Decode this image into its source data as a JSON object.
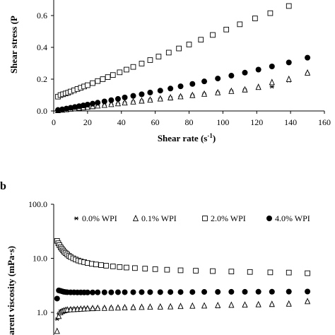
{
  "panels": {
    "b_label": "b"
  },
  "chart_data": [
    {
      "panel": "a",
      "type": "scatter",
      "xlabel": "Shear rate (s",
      "xlabel_sup": "-1",
      "xlabel_tail": ")",
      "ylabel": "Shear stress (P",
      "xlim": [
        0,
        160
      ],
      "ylim": [
        0,
        0.8
      ],
      "x_ticks": [
        "0",
        "20",
        "40",
        "60",
        "80",
        "100",
        "120",
        "140",
        "160"
      ],
      "y_ticks": [
        "0.0",
        "0.2",
        "0.4",
        "0.6",
        "0.8"
      ],
      "series": [
        {
          "marker": "star",
          "x": [
            2.5,
            5,
            7.5,
            10,
            12.5,
            15,
            17.5,
            20,
            23,
            26,
            30,
            34,
            38,
            42,
            47,
            52,
            57,
            63,
            69,
            75,
            82,
            89,
            97,
            105,
            113,
            121,
            129,
            139,
            150
          ],
          "y": [
            0.003,
            0.006,
            0.009,
            0.012,
            0.015,
            0.018,
            0.021,
            0.024,
            0.028,
            0.032,
            0.036,
            0.041,
            0.046,
            0.051,
            0.057,
            0.063,
            0.069,
            0.076,
            0.083,
            0.09,
            0.098,
            0.106,
            0.115,
            0.124,
            0.133,
            0.143,
            0.152,
            0.19,
            0.235
          ]
        },
        {
          "marker": "triangle",
          "x": [
            2.5,
            5,
            7.5,
            10,
            12.5,
            15,
            17.5,
            20,
            23,
            26,
            30,
            34,
            38,
            42,
            47,
            52,
            57,
            63,
            69,
            75,
            82,
            89,
            97,
            105,
            113,
            121,
            129,
            139,
            150
          ],
          "y": [
            0.004,
            0.007,
            0.01,
            0.013,
            0.016,
            0.019,
            0.022,
            0.025,
            0.029,
            0.033,
            0.037,
            0.042,
            0.047,
            0.052,
            0.058,
            0.064,
            0.07,
            0.077,
            0.084,
            0.091,
            0.099,
            0.107,
            0.116,
            0.125,
            0.134,
            0.15,
            0.18,
            0.2,
            0.24
          ]
        },
        {
          "marker": "square",
          "x": [
            2.5,
            4,
            5.5,
            7,
            8.5,
            10,
            12,
            14,
            16,
            18,
            20,
            23,
            26,
            29,
            32,
            35,
            39,
            43,
            47,
            52,
            57,
            62,
            68,
            74,
            80,
            87,
            94,
            102,
            110,
            119,
            128,
            139
          ],
          "y": [
            0.09,
            0.1,
            0.105,
            0.11,
            0.115,
            0.122,
            0.13,
            0.138,
            0.146,
            0.154,
            0.162,
            0.175,
            0.188,
            0.2,
            0.213,
            0.226,
            0.243,
            0.26,
            0.277,
            0.298,
            0.32,
            0.342,
            0.367,
            0.393,
            0.418,
            0.448,
            0.478,
            0.512,
            0.545,
            0.582,
            0.615,
            0.66
          ]
        },
        {
          "marker": "circle",
          "x": [
            2.5,
            5,
            7.5,
            10,
            12.5,
            15,
            17.5,
            20,
            23,
            26,
            30,
            34,
            38,
            42,
            47,
            52,
            57,
            63,
            69,
            75,
            82,
            89,
            97,
            105,
            113,
            121,
            129,
            139,
            150
          ],
          "y": [
            0.006,
            0.01,
            0.015,
            0.02,
            0.025,
            0.03,
            0.035,
            0.04,
            0.046,
            0.052,
            0.06,
            0.068,
            0.076,
            0.085,
            0.095,
            0.105,
            0.116,
            0.128,
            0.141,
            0.155,
            0.17,
            0.186,
            0.204,
            0.222,
            0.241,
            0.26,
            0.28,
            0.305,
            0.335
          ]
        }
      ]
    },
    {
      "panel": "b",
      "type": "scatter",
      "y_scale": "log",
      "ylabel": "arent viscosity (mPa·s)",
      "ylim": [
        0.3,
        100
      ],
      "y_ticks": [
        {
          "value": 100,
          "label": "100.0"
        },
        {
          "value": 10,
          "label": "10.0"
        },
        {
          "value": 1,
          "label": "1.0"
        }
      ],
      "xlim": [
        0,
        160
      ],
      "legend": {
        "position": "top",
        "entries": [
          {
            "marker": "star",
            "label": "0.0% WPI"
          },
          {
            "marker": "triangle",
            "label": "0.1% WPI"
          },
          {
            "marker": "square",
            "label": "2.0% WPI"
          },
          {
            "marker": "circle",
            "label": "4.0% WPI"
          }
        ]
      },
      "series": [
        {
          "name": "0.0% WPI",
          "marker": "star",
          "x": [
            2,
            3,
            4,
            5,
            6,
            7,
            8,
            10,
            12,
            14,
            16,
            18,
            20,
            23,
            26,
            30,
            34,
            38,
            42,
            47,
            52,
            57,
            63,
            69,
            75,
            82,
            89,
            97,
            105,
            113,
            121,
            129,
            139,
            150
          ],
          "y": [
            0.75,
            0.95,
            1.05,
            1.08,
            1.1,
            1.12,
            1.13,
            1.14,
            1.15,
            1.15,
            1.15,
            1.16,
            1.17,
            1.18,
            1.18,
            1.19,
            1.2,
            1.2,
            1.21,
            1.21,
            1.22,
            1.22,
            1.23,
            1.24,
            1.25,
            1.26,
            1.27,
            1.28,
            1.3,
            1.32,
            1.34,
            1.36,
            1.38,
            1.55
          ]
        },
        {
          "name": "0.1% WPI",
          "marker": "triangle",
          "x": [
            2,
            3,
            4,
            5,
            6,
            7,
            8,
            10,
            12,
            14,
            16,
            18,
            20,
            23,
            26,
            30,
            34,
            38,
            42,
            47,
            52,
            57,
            63,
            69,
            75,
            82,
            89,
            97,
            105,
            113,
            121,
            129,
            139,
            150
          ],
          "y": [
            0.45,
            0.85,
            1.0,
            1.05,
            1.08,
            1.1,
            1.12,
            1.13,
            1.14,
            1.15,
            1.16,
            1.17,
            1.18,
            1.19,
            1.2,
            1.2,
            1.21,
            1.22,
            1.23,
            1.24,
            1.25,
            1.26,
            1.27,
            1.28,
            1.3,
            1.32,
            1.33,
            1.35,
            1.37,
            1.38,
            1.4,
            1.42,
            1.44,
            1.6
          ]
        },
        {
          "name": "2.0% WPI",
          "marker": "square",
          "x": [
            2,
            2.7,
            3.4,
            4.1,
            4.8,
            5.5,
            6.2,
            7,
            8,
            9,
            10,
            11.5,
            13,
            14.5,
            16,
            18,
            20,
            22.5,
            25,
            28,
            31,
            35,
            39,
            43,
            48,
            54,
            60,
            67,
            75,
            84,
            94,
            105,
            116,
            128,
            139,
            150
          ],
          "y": [
            21,
            19,
            17.5,
            16,
            15,
            14,
            13.2,
            12.5,
            11.8,
            11.1,
            10.6,
            10.0,
            9.5,
            9.1,
            8.8,
            8.5,
            8.2,
            7.9,
            7.7,
            7.5,
            7.3,
            7.1,
            6.9,
            6.75,
            6.6,
            6.45,
            6.3,
            6.15,
            6.0,
            5.9,
            5.8,
            5.7,
            5.6,
            5.5,
            5.45,
            5.3
          ]
        },
        {
          "name": "4.0% WPI",
          "marker": "circle",
          "x": [
            2,
            3,
            4,
            5,
            6,
            7,
            8,
            10,
            12,
            14,
            16,
            18,
            20,
            23,
            26,
            30,
            34,
            38,
            42,
            47,
            52,
            57,
            63,
            69,
            75,
            82,
            89,
            97,
            105,
            113,
            121,
            129,
            139,
            150
          ],
          "y": [
            1.8,
            2.55,
            2.5,
            2.45,
            2.4,
            2.38,
            2.36,
            2.35,
            2.35,
            2.34,
            2.34,
            2.34,
            2.34,
            2.34,
            2.35,
            2.35,
            2.35,
            2.36,
            2.36,
            2.36,
            2.37,
            2.37,
            2.37,
            2.38,
            2.38,
            2.38,
            2.39,
            2.39,
            2.4,
            2.4,
            2.41,
            2.41,
            2.42,
            2.43
          ]
        }
      ]
    }
  ]
}
